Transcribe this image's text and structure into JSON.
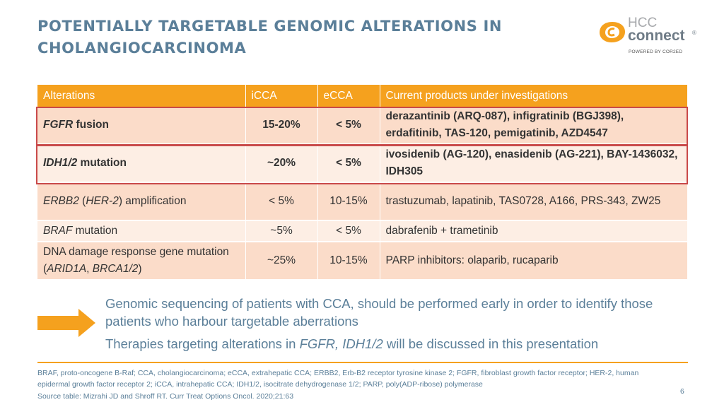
{
  "title": "POTENTIALLY TARGETABLE GENOMIC ALTERATIONS IN CHOLANGIOCARCINOMA",
  "logo": {
    "line1": "HCC",
    "line2": "connect",
    "reg": "®",
    "powered": "POWERED BY COR2ED"
  },
  "table": {
    "headers": [
      "Alterations",
      "iCCA",
      "eCCA",
      "Current products under investigations"
    ],
    "rows": [
      {
        "alt_italic": "FGFR",
        "alt_rest": " fusion",
        "icca": "15-20%",
        "ecca": "< 5%",
        "products": "derazantinib (ARQ-087), infigratinib (BGJ398), erdafitinib, TAS-120, pemigatinib, AZD4547"
      },
      {
        "alt_italic": "IDH1/2",
        "alt_rest": " mutation",
        "icca": "~20%",
        "ecca": "< 5%",
        "products": "ivosidenib (AG-120), enasidenib (AG-221), BAY-1436032, IDH305"
      },
      {
        "alt_italic": "ERBB2",
        "alt_mid": " (",
        "alt_italic2": "HER-2",
        "alt_rest": ") amplification",
        "icca": "< 5%",
        "ecca": "10-15%",
        "products": "trastuzumab, lapatinib, TAS0728, A166, PRS-343, ZW25"
      },
      {
        "alt_italic": "BRAF",
        "alt_rest": " mutation",
        "icca": "~5%",
        "ecca": "< 5%",
        "products": "dabrafenib + trametinib"
      },
      {
        "alt_pre": "DNA damage response gene mutation (",
        "alt_italic": "ARID1A",
        "alt_mid": ", ",
        "alt_italic2": "BRCA1/2",
        "alt_rest": ")",
        "icca": "~25%",
        "ecca": "10-15%",
        "products": "PARP inhibitors: olaparib, rucaparib"
      }
    ]
  },
  "message": {
    "line1": "Genomic sequencing of patients with CCA, should be performed early in order to identify those patients who harbour targetable aberrations",
    "line2_pre": "Therapies targeting alterations in ",
    "line2_italic": "FGFR, IDH1/2",
    "line2_post": " will be discussed in this presentation"
  },
  "footnote": "BRAF, proto-oncogene B-Raf; CCA, cholangiocarcinoma; eCCA, extrahepatic CCA; ERBB2, Erb-B2 receptor tyrosine kinase 2; FGFR, fibroblast growth factor receptor; HER-2, human epidermal growth factor receptor 2; iCCA, intrahepatic CCA; IDH1/2, isocitrate dehydrogenase 1/2; PARP, poly(ADP-ribose) polymerase",
  "source": "Source table: Mizrahi JD and Shroff RT.  Curr Treat Options Oncol. 2020;21:63",
  "page_number": "6",
  "colors": {
    "accent": "#f5a11e",
    "title": "#5b7f99",
    "highlight_border": "#c94a4a"
  }
}
